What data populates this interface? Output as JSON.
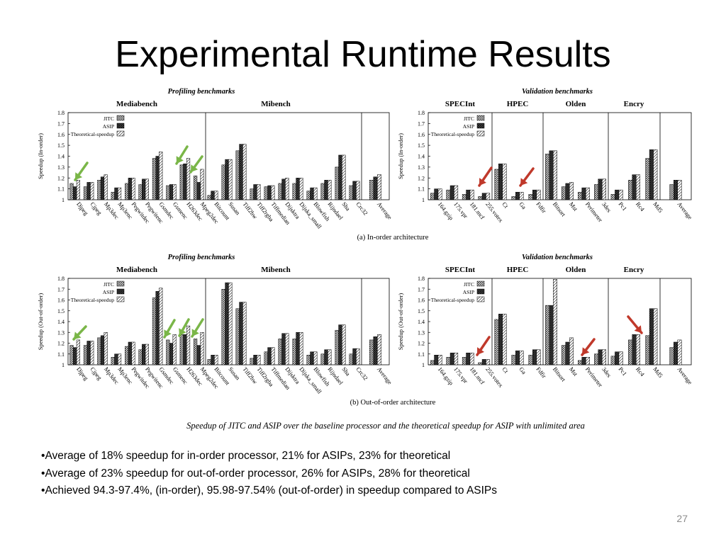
{
  "slide": {
    "title": "Experimental Runtime Results",
    "page_number": "27",
    "bullets": [
      "Average of 18% speedup for in-order processor, 21% for ASIPs, 23% for theoretical",
      "Average of 23% speedup for out-of-order processor, 26% for ASIPs, 28% for theoretical",
      "Achieved 94.3-97.4%, (in-order), 95.98-97.54% (out-of-order) in speedup compared to ASIPs"
    ]
  },
  "figure": {
    "caption": "Speedup of JITC and ASIP over the baseline processor and the theoretical speedup for ASIP with unlimited area",
    "profiling_header": "Profiling benchmarks",
    "validation_header": "Validation benchmarks",
    "arrow_colors": {
      "green": "#7ab648",
      "red": "#c0392b"
    }
  },
  "chart_data": [
    {
      "type": "bar",
      "subtitle": "(a) In-order architecture",
      "group_header": "Profiling benchmarks",
      "ylabel": "Speedup (In-order)",
      "ylim": [
        1,
        1.8
      ],
      "yticks": [
        "1",
        "1.1",
        "1.2",
        "1.3",
        "1.4",
        "1.5",
        "1.6",
        "1.7",
        "1.8"
      ],
      "sections": [
        "Mediabench",
        "Mibench"
      ],
      "legend": [
        "JITC",
        "ASIP",
        "Theoretical-speedup"
      ],
      "legend_position": "top-left",
      "categories": [
        "Djpeg",
        "Cjpeg",
        "Mp3dec",
        "Mp3enc",
        "Pegwitdec",
        "Pegwitenc",
        "Gsmdec",
        "Gsmenc",
        "H263dec",
        "Mpeg2dec",
        "Bitcount",
        "Susan",
        "Tiff2bw",
        "Tiff2rgba",
        "Tiffmedian",
        "Dijsktra",
        "Dijska_small",
        "Blowfish",
        "Rijndael",
        "Sha",
        "Crc32",
        "Average"
      ],
      "series": [
        {
          "name": "JITC",
          "values": [
            1.15,
            1.12,
            1.18,
            1.07,
            1.15,
            1.14,
            1.38,
            1.13,
            1.32,
            1.22,
            1.04,
            1.32,
            1.45,
            1.1,
            1.12,
            1.15,
            1.15,
            1.08,
            1.15,
            1.3,
            1.13,
            1.18
          ]
        },
        {
          "name": "ASIP",
          "values": [
            1.12,
            1.16,
            1.21,
            1.11,
            1.2,
            1.19,
            1.4,
            1.14,
            1.33,
            1.16,
            1.08,
            1.37,
            1.51,
            1.14,
            1.13,
            1.19,
            1.2,
            1.11,
            1.18,
            1.41,
            1.17,
            1.21
          ]
        },
        {
          "name": "Theoretical-speedup",
          "values": [
            1.18,
            1.16,
            1.23,
            1.11,
            1.2,
            1.19,
            1.44,
            1.14,
            1.38,
            1.28,
            1.08,
            1.37,
            1.51,
            1.14,
            1.13,
            1.2,
            1.2,
            1.11,
            1.18,
            1.41,
            1.17,
            1.23
          ]
        }
      ],
      "grid": false
    },
    {
      "type": "bar",
      "subtitle": "(a) In-order architecture",
      "group_header": "Validation benchmarks",
      "ylabel": "Speedup (In-order)",
      "ylim": [
        1,
        1.8
      ],
      "yticks": [
        "1",
        "1.1",
        "1.2",
        "1.3",
        "1.4",
        "1.5",
        "1.6",
        "1.7",
        "1.8"
      ],
      "sections": [
        "SPECInt",
        "HPEC",
        "Olden",
        "Encry"
      ],
      "legend": [
        "JITC",
        "ASIP",
        "Theoretical-speedup"
      ],
      "legend_position": "top-left",
      "categories": [
        "164.gzip",
        "175.vpr",
        "181.mcf",
        "255.votex",
        "Ct",
        "Ga",
        "Fdfir",
        "Bitsort",
        "Mst",
        "Perimeter",
        "3des",
        "Pc1",
        "Rc4",
        "Md5",
        "Average"
      ],
      "series": [
        {
          "name": "JITC",
          "values": [
            1.06,
            1.09,
            1.05,
            1.03,
            1.28,
            1.03,
            1.05,
            1.42,
            1.12,
            1.07,
            1.14,
            1.05,
            1.18,
            1.38,
            1.14
          ]
        },
        {
          "name": "ASIP",
          "values": [
            1.1,
            1.13,
            1.09,
            1.06,
            1.33,
            1.07,
            1.09,
            1.45,
            1.15,
            1.11,
            1.19,
            1.09,
            1.23,
            1.46,
            1.18
          ]
        },
        {
          "name": "Theoretical-speedup",
          "values": [
            1.1,
            1.13,
            1.09,
            1.06,
            1.33,
            1.07,
            1.09,
            1.45,
            1.16,
            1.11,
            1.19,
            1.09,
            1.23,
            1.46,
            1.18
          ]
        }
      ],
      "grid": false
    },
    {
      "type": "bar",
      "subtitle": "(b) Out-of-order architecture",
      "group_header": "Profiling benchmarks",
      "ylabel": "Speedup (Out-of-order)",
      "ylim": [
        1,
        1.8
      ],
      "yticks": [
        "1",
        "1.1",
        "1.2",
        "1.3",
        "1.4",
        "1.5",
        "1.6",
        "1.7",
        "1.8"
      ],
      "sections": [
        "Mediabench",
        "Mibench"
      ],
      "legend": [
        "JITC",
        "ASIP",
        "Theoretical-speedup"
      ],
      "legend_position": "top-left",
      "categories": [
        "Djpeg",
        "Cjpeg",
        "Mp3dec",
        "Mp3enc",
        "Pegwitdec",
        "Pegwitenc",
        "Gsmdec",
        "Gsmenc",
        "H263dec",
        "Mpeg2dec",
        "Bitcount",
        "Susan",
        "Tiff2bw",
        "Tiff2rgba",
        "Tiffmedian",
        "Dijsktra",
        "Dijska_small",
        "Blowfish",
        "Rijndael",
        "Sha",
        "Crc32",
        "Average"
      ],
      "series": [
        {
          "name": "JITC",
          "values": [
            1.18,
            1.18,
            1.25,
            1.07,
            1.17,
            1.14,
            1.62,
            1.23,
            1.28,
            1.24,
            1.05,
            1.7,
            1.52,
            1.06,
            1.12,
            1.24,
            1.24,
            1.09,
            1.1,
            1.32,
            1.1,
            1.23
          ]
        },
        {
          "name": "ASIP",
          "values": [
            1.16,
            1.22,
            1.27,
            1.1,
            1.21,
            1.19,
            1.68,
            1.2,
            1.28,
            1.18,
            1.09,
            1.76,
            1.58,
            1.09,
            1.16,
            1.29,
            1.3,
            1.12,
            1.14,
            1.37,
            1.15,
            1.26
          ]
        },
        {
          "name": "Theoretical-speedup",
          "values": [
            1.23,
            1.22,
            1.3,
            1.1,
            1.21,
            1.19,
            1.71,
            1.28,
            1.36,
            1.3,
            1.09,
            1.76,
            1.58,
            1.09,
            1.16,
            1.29,
            1.3,
            1.12,
            1.14,
            1.37,
            1.15,
            1.28
          ]
        }
      ],
      "grid": false
    },
    {
      "type": "bar",
      "subtitle": "(b) Out-of-order architecture",
      "group_header": "Validation benchmarks",
      "ylabel": "Speedup (Out-of-order)",
      "ylim": [
        1,
        1.8
      ],
      "yticks": [
        "1",
        "1.1",
        "1.2",
        "1.3",
        "1.4",
        "1.5",
        "1.6",
        "1.7",
        "1.8"
      ],
      "sections": [
        "SPECInt",
        "HPEC",
        "Olden",
        "Encry"
      ],
      "legend": [
        "JITC",
        "ASIP",
        "Theoretical-speedup"
      ],
      "legend_position": "top-left",
      "categories": [
        "164.gzip",
        "175.vpr",
        "181.mcf",
        "255.votex",
        "Ct",
        "Ga",
        "Fdfir",
        "Bitsort",
        "Mst",
        "Perimeter",
        "3des",
        "Pc1",
        "Rc4",
        "Md5",
        "Average"
      ],
      "series": [
        {
          "name": "JITC",
          "values": [
            1.04,
            1.07,
            1.07,
            1.02,
            1.42,
            1.09,
            1.09,
            1.55,
            1.18,
            1.04,
            1.1,
            1.08,
            1.23,
            1.27,
            1.16
          ]
        },
        {
          "name": "ASIP",
          "values": [
            1.09,
            1.11,
            1.11,
            1.05,
            1.47,
            1.13,
            1.14,
            1.55,
            1.21,
            1.07,
            1.14,
            1.12,
            1.28,
            1.52,
            1.21
          ]
        },
        {
          "name": "Theoretical-speedup",
          "values": [
            1.09,
            1.11,
            1.11,
            1.05,
            1.47,
            1.13,
            1.14,
            1.79,
            1.25,
            1.07,
            1.14,
            1.12,
            1.28,
            1.52,
            1.23
          ]
        }
      ],
      "grid": false
    }
  ]
}
